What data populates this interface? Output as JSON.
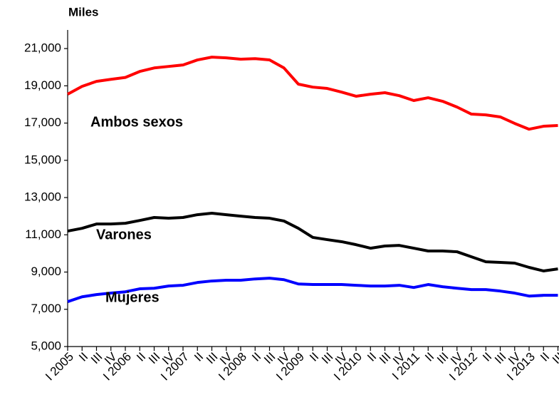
{
  "chart_data": {
    "type": "line",
    "y_label": "Miles",
    "categories": [
      "I 2005",
      "II",
      "III",
      "IV",
      "I 2006",
      "II",
      "III",
      "IV",
      "I 2007",
      "II",
      "III",
      "IV",
      "I 2008",
      "II",
      "III",
      "IV",
      "I 2009",
      "II",
      "III",
      "IV",
      "I 2010",
      "II",
      "III",
      "IV",
      "I 2011",
      "II",
      "III",
      "IV",
      "I 2012",
      "II",
      "III",
      "IV",
      "I 2013",
      "II",
      "III"
    ],
    "series": [
      {
        "name": "Ambos sexos",
        "color": "#ff0000",
        "values": [
          18550,
          18970,
          19240,
          19350,
          19450,
          19770,
          19960,
          20040,
          20120,
          20390,
          20540,
          20500,
          20430,
          20460,
          20390,
          19960,
          19090,
          18930,
          18860,
          18660,
          18440,
          18550,
          18630,
          18470,
          18210,
          18360,
          18170,
          17860,
          17480,
          17440,
          17330,
          16980,
          16670,
          16830,
          16870
        ]
      },
      {
        "name": "Varones",
        "color": "#000000",
        "values": [
          11200,
          11350,
          11580,
          11580,
          11620,
          11770,
          11930,
          11890,
          11930,
          12080,
          12160,
          12080,
          12000,
          11930,
          11890,
          11740,
          11350,
          10860,
          10740,
          10630,
          10470,
          10280,
          10400,
          10430,
          10280,
          10130,
          10130,
          10090,
          9820,
          9550,
          9520,
          9480,
          9250,
          9060,
          9170
        ]
      },
      {
        "name": "Mujeres",
        "color": "#0000ff",
        "values": [
          7410,
          7670,
          7790,
          7870,
          7940,
          8100,
          8130,
          8250,
          8290,
          8440,
          8520,
          8560,
          8560,
          8630,
          8670,
          8590,
          8360,
          8330,
          8330,
          8330,
          8290,
          8250,
          8250,
          8290,
          8170,
          8330,
          8210,
          8130,
          8060,
          8060,
          7980,
          7870,
          7710,
          7750,
          7750
        ]
      }
    ],
    "ylim": [
      5000,
      22000
    ],
    "yticks": [
      {
        "value": 5000,
        "label": "5,000"
      },
      {
        "value": 7000,
        "label": "7,000"
      },
      {
        "value": 9000,
        "label": "9,000"
      },
      {
        "value": 11000,
        "label": "11,000"
      },
      {
        "value": 13000,
        "label": "13,000"
      },
      {
        "value": 15000,
        "label": "15,000"
      },
      {
        "value": 17000,
        "label": "17,000"
      },
      {
        "value": 19000,
        "label": "19,000"
      },
      {
        "value": 21000,
        "label": "21,000"
      }
    ],
    "grid": false
  }
}
